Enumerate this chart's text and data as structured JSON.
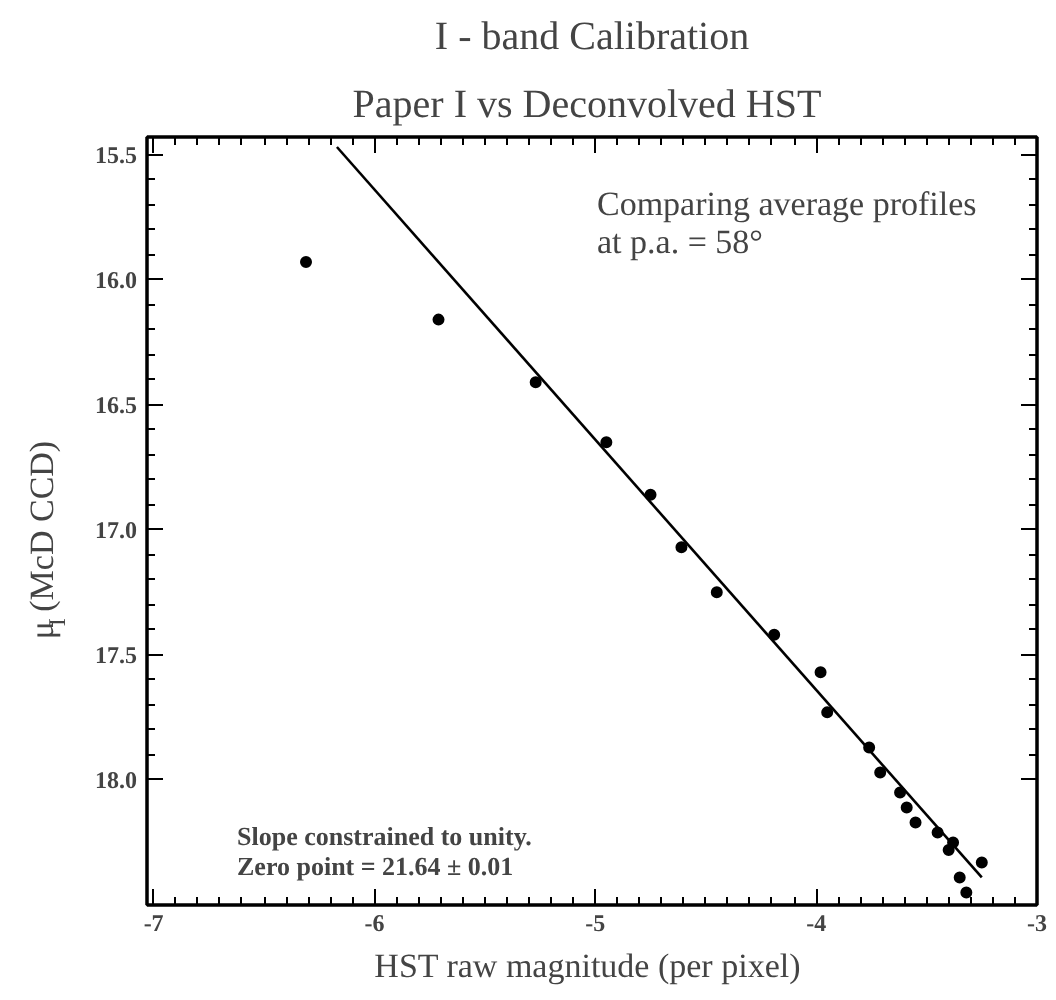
{
  "chart_data": {
    "type": "scatter",
    "title": "I - band Calibration",
    "subtitle": "Paper I vs  Deconvolved HST",
    "xlabel": "HST  raw magnitude (per pixel)",
    "ylabel": "μ$_{I}$ (McD CCD)",
    "annotations": [
      "Comparing average profiles\nat p.a. = 58°",
      "Slope constrained to unity.\nZero point = 21.64 ± 0.01"
    ],
    "xlim": [
      -7.03,
      -3
    ],
    "ylim": [
      18.5,
      15.43
    ],
    "xticks": [
      -7,
      -6,
      -5,
      -4,
      -3
    ],
    "yticks": [
      {
        "value": 15.5,
        "label": "15.5"
      },
      {
        "value": 16,
        "label": "16.0"
      },
      {
        "value": 16.5,
        "label": "16.5"
      },
      {
        "value": 17,
        "label": "17.0"
      },
      {
        "value": 17.5,
        "label": "17.5"
      },
      {
        "value": 18,
        "label": "18.0"
      }
    ],
    "marker": "circle",
    "series": [
      {
        "color": "#000000",
        "x": [
          -6.31,
          -5.71,
          -5.27,
          -4.95,
          -4.75,
          -4.61,
          -4.45,
          -4.19,
          -3.98,
          -3.95,
          -3.76,
          -3.71,
          -3.62,
          -3.59,
          -3.55,
          -3.45,
          -3.38,
          -3.4,
          -3.35,
          -3.32,
          -3.25
        ],
        "values": [
          15.93,
          16.16,
          16.41,
          16.65,
          16.86,
          17.07,
          17.25,
          17.42,
          17.57,
          17.73,
          17.87,
          17.97,
          18.05,
          18.11,
          18.17,
          18.21,
          18.25,
          18.28,
          18.39,
          18.45,
          18.33
        ]
      },
      {
        "type": "line",
        "marker": "none",
        "line_style": "solid",
        "color": "#000000",
        "x": [
          -6.17,
          -3.25
        ],
        "values": [
          15.47,
          18.39
        ]
      }
    ]
  }
}
